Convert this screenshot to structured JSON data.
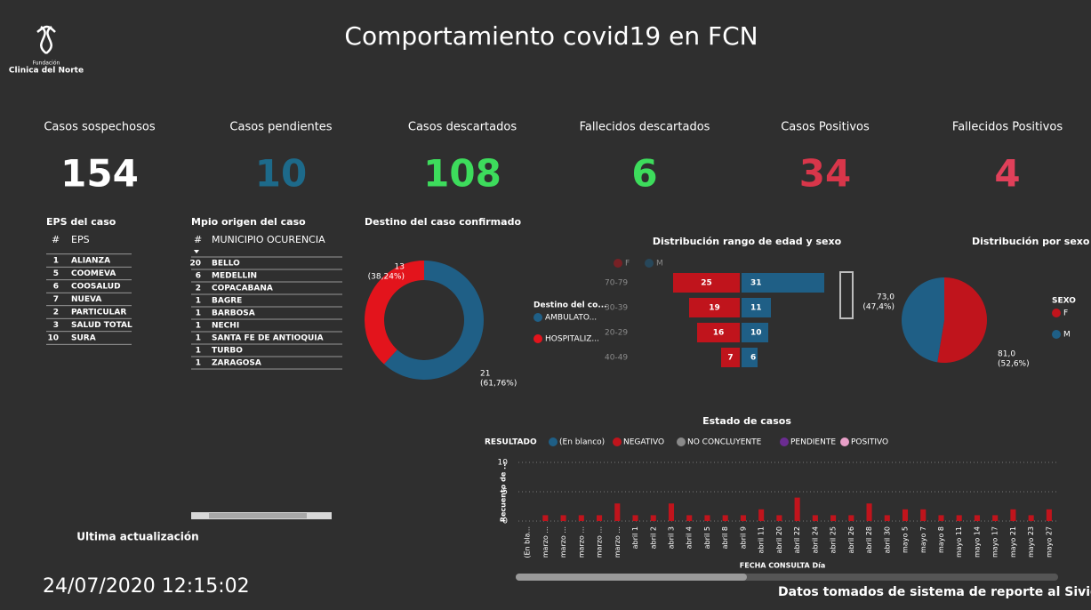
{
  "header": {
    "title": "Comportamiento covid19 en FCN",
    "logo_caption": "Fundación",
    "logo_text": "Clinica del Norte"
  },
  "kpis": [
    {
      "label": "Casos sospechosos",
      "value": 154,
      "color": "#ffffff"
    },
    {
      "label": "Casos pendientes",
      "value": 10,
      "color": "#1d6a8a"
    },
    {
      "label": "Casos descartados",
      "value": 108,
      "color": "#3ddc5c"
    },
    {
      "label": "Fallecidos descartados",
      "value": 6,
      "color": "#3ddc5c"
    },
    {
      "label": "Casos Positivos",
      "value": 34,
      "color": "#d8364a"
    },
    {
      "label": "Fallecidos Positivos",
      "value": 4,
      "color": "#e0405a"
    }
  ],
  "eps_table": {
    "title": "EPS del caso",
    "columns": [
      "#",
      "EPS"
    ],
    "rows": [
      [
        1,
        "ALIANZA"
      ],
      [
        5,
        "COOMEVA"
      ],
      [
        6,
        "COOSALUD"
      ],
      [
        7,
        "NUEVA"
      ],
      [
        2,
        "PARTICULAR"
      ],
      [
        3,
        "SALUD TOTAL"
      ],
      [
        10,
        "SURA"
      ]
    ]
  },
  "mpio_table": {
    "title": "Mpio origen del caso",
    "columns": [
      "#",
      "MUNICIPIO OCURENCIA"
    ],
    "rows": [
      [
        20,
        "BELLO"
      ],
      [
        6,
        "MEDELLIN"
      ],
      [
        2,
        "COPACABANA"
      ],
      [
        1,
        "BAGRE"
      ],
      [
        1,
        "BARBOSA"
      ],
      [
        1,
        "NECHI"
      ],
      [
        1,
        "SANTA FE DE ANTIOQUIA"
      ],
      [
        1,
        "TURBO"
      ],
      [
        1,
        "ZARAGOSA"
      ]
    ]
  },
  "footer": {
    "update_label": "Ultima actualización",
    "update_time": "24/07/2020 12:15:02",
    "source": "Datos tomados de sistema de reporte al Sivigila"
  },
  "chart_data": [
    {
      "type": "donut",
      "title": "Destino del caso confirmado",
      "legend_title": "Destino del co...",
      "categories": [
        "AMBULATO...",
        "HOSPITALIZ..."
      ],
      "values": [
        21,
        13
      ],
      "percent_labels": [
        "(61,76%)",
        "(38,24%)"
      ],
      "colors": [
        "#1f5f86",
        "#e3141c"
      ]
    },
    {
      "type": "butterfly",
      "title": "Distribución rango de edad y sexo",
      "categories": [
        "70-79",
        "30-39",
        "20-29",
        "40-49"
      ],
      "xlim": [
        0,
        35
      ],
      "series": [
        {
          "name": "F",
          "color": "#c0141c",
          "values": [
            25,
            19,
            16,
            7
          ]
        },
        {
          "name": "M",
          "color": "#1f5f86",
          "values": [
            31,
            11,
            10,
            6
          ]
        }
      ]
    },
    {
      "type": "pie",
      "title": "Distribución por sexo",
      "legend_title": "SEXO",
      "categories": [
        "F",
        "M"
      ],
      "values": [
        81.0,
        73.0
      ],
      "value_labels": [
        "81,0",
        "73,0"
      ],
      "percent_labels": [
        "(52,6%)",
        "(47,4%)"
      ],
      "colors": [
        "#c0141c",
        "#1f5f86"
      ]
    },
    {
      "type": "stacked_bar",
      "title": "Estado de casos",
      "legend_title": "RESULTADO",
      "x_label": "FECHA CONSULTA Día",
      "y_label": "Recuento de ...",
      "categories": [
        "(En bla...",
        "marzo ...",
        "marzo ...",
        "marzo ...",
        "marzo ...",
        "marzo ...",
        "abril 1",
        "abril 2",
        "abril 3",
        "abril 4",
        "abril 5",
        "abril 8",
        "abril 9",
        "abril 11",
        "abril 20",
        "abril 22",
        "abril 24",
        "abril 25",
        "abril 26",
        "abril 28",
        "abril 30",
        "mayo 5",
        "mayo 7",
        "mayo 8",
        "mayo 11",
        "mayo 14",
        "mayo 17",
        "mayo 21",
        "mayo 23",
        "mayo 27"
      ],
      "ylim": [
        0,
        10
      ],
      "yticks": [
        0,
        5,
        10
      ],
      "grid": true,
      "series": [
        {
          "name": "(En blanco)",
          "color": "#1f5f86",
          "values": [
            0,
            0,
            0,
            0,
            0,
            0,
            0,
            0,
            0,
            0,
            0,
            0,
            0,
            0,
            0,
            0,
            0,
            0,
            0,
            0,
            0,
            0,
            0,
            0,
            0,
            0,
            0,
            0,
            0,
            0
          ]
        },
        {
          "name": "NEGATIVO",
          "color": "#c0141c",
          "values": [
            0,
            1,
            1,
            1,
            1,
            3,
            1,
            1,
            3,
            1,
            1,
            1,
            1,
            2,
            1,
            4,
            1,
            1,
            1,
            3,
            1,
            2,
            2,
            1,
            1,
            1,
            1,
            2,
            1,
            2
          ]
        },
        {
          "name": "NO CONCLUYENTE",
          "color": "#8a8a8a",
          "values": [
            0,
            0,
            0,
            0,
            0,
            0,
            0,
            0,
            0,
            0,
            0,
            0,
            0,
            0,
            0,
            0,
            0,
            0,
            0,
            0,
            0,
            0,
            0,
            0,
            0,
            0,
            0,
            0,
            0,
            0
          ]
        },
        {
          "name": "PENDIENTE",
          "color": "#6b2c91",
          "values": [
            0,
            0,
            0,
            0,
            0,
            0,
            0,
            0,
            0,
            0,
            0,
            0,
            0,
            0,
            0,
            0,
            0,
            0,
            0,
            0,
            0,
            0,
            0,
            0,
            0,
            0,
            0,
            0,
            0,
            0
          ]
        },
        {
          "name": "POSITIVO",
          "color": "#e8a0c8",
          "values": [
            0,
            0,
            0,
            0,
            0,
            0,
            0,
            0,
            0,
            0,
            0,
            0,
            0,
            0,
            0,
            0,
            0,
            0,
            0,
            0,
            0,
            0,
            0,
            0,
            0,
            0,
            0,
            0,
            0,
            0
          ]
        }
      ]
    }
  ]
}
